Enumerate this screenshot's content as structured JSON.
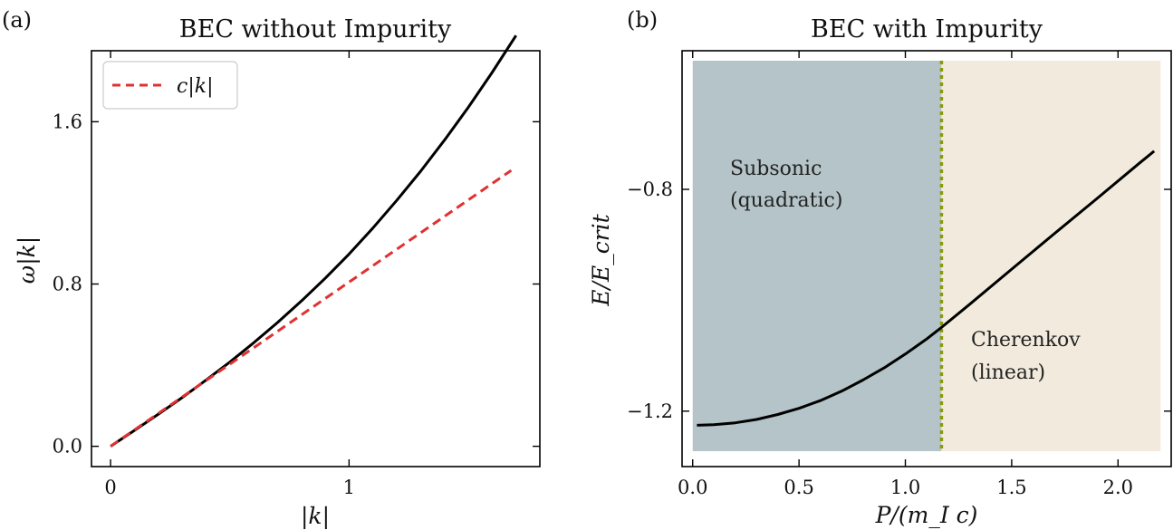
{
  "chart_data": [
    {
      "panel": "(a)",
      "type": "line",
      "title": "BEC without Impurity",
      "xlabel": "|k|",
      "ylabel": "ω|k|",
      "xlim": [
        -0.08,
        1.8
      ],
      "ylim": [
        -0.1,
        1.95
      ],
      "xticks": [
        0,
        1
      ],
      "yticks": [
        0.0,
        0.8,
        1.6
      ],
      "xtick_labels": [
        "0",
        "1"
      ],
      "ytick_labels": [
        "0.0",
        "0.8",
        "1.6"
      ],
      "legend": {
        "position": "top-left",
        "entries": [
          "c|k|"
        ]
      },
      "series": [
        {
          "color": "#000000",
          "style": "solid",
          "x": [
            0,
            0.1,
            0.2,
            0.3,
            0.4,
            0.5,
            0.6,
            0.7,
            0.8,
            0.9,
            1.0,
            1.1,
            1.2,
            1.3,
            1.4,
            1.5,
            1.6,
            1.7
          ],
          "y": [
            0,
            0.078,
            0.158,
            0.24,
            0.326,
            0.415,
            0.51,
            0.61,
            0.716,
            0.828,
            0.948,
            1.076,
            1.212,
            1.356,
            1.509,
            1.671,
            1.843,
            2.025
          ]
        },
        {
          "name": "c|k|",
          "color": "#e03131",
          "style": "dashed",
          "x": [
            0,
            1.68
          ],
          "y": [
            0,
            1.36
          ]
        }
      ]
    },
    {
      "panel": "(b)",
      "type": "line",
      "title": "BEC with Impurity",
      "xlabel": "P/(m_I c)",
      "ylabel": "E/E_crit",
      "xlim": [
        -0.05,
        2.25
      ],
      "ylim": [
        -1.3,
        -0.55
      ],
      "xticks": [
        0.0,
        0.5,
        1.0,
        1.5,
        2.0
      ],
      "yticks": [
        -1.2,
        -0.8
      ],
      "xtick_labels": [
        "0.0",
        "0.5",
        "1.0",
        "1.5",
        "2.0"
      ],
      "ytick_labels": [
        "−1.2",
        "−0.8"
      ],
      "critical_P": 1.17,
      "regions": [
        {
          "label_line1": "Subsonic",
          "label_line2": "(quadratic)",
          "x": [
            0.0,
            1.17
          ],
          "color": "#b5c4c8"
        },
        {
          "label_line1": "Cherenkov",
          "label_line2": "(linear)",
          "x": [
            1.17,
            2.2
          ],
          "color": "#f2ebdd"
        }
      ],
      "series": [
        {
          "color": "#000000",
          "style": "solid",
          "x": [
            0.02,
            0.1,
            0.2,
            0.3,
            0.4,
            0.5,
            0.6,
            0.7,
            0.8,
            0.9,
            1.0,
            1.1,
            1.17,
            1.3,
            1.5,
            1.7,
            1.9,
            2.1,
            2.17
          ],
          "y": [
            -1.2255,
            -1.2245,
            -1.221,
            -1.215,
            -1.206,
            -1.195,
            -1.181,
            -1.164,
            -1.144,
            -1.122,
            -1.097,
            -1.07,
            -1.049,
            -1.008,
            -0.944,
            -0.88,
            -0.817,
            -0.753,
            -0.731
          ]
        }
      ]
    }
  ]
}
